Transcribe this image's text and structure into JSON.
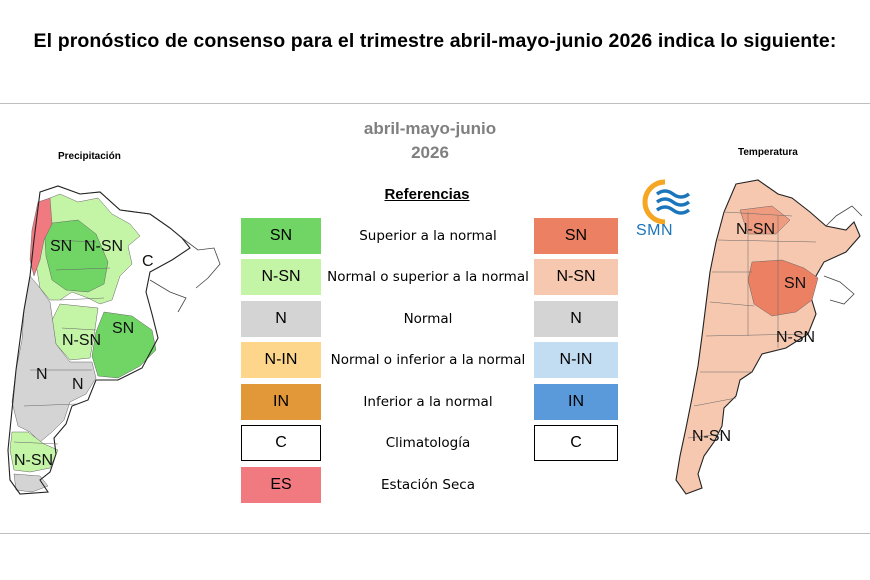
{
  "headline": "El pronóstico de consenso para el trimestre abril-mayo-junio 2026 indica lo siguiente:",
  "period": {
    "line1": "abril-mayo-junio",
    "line2": "2026"
  },
  "maps": {
    "precipitation": {
      "title": "Precipitación",
      "labels": [
        "SN",
        "N-SN",
        "C",
        "N-SN",
        "SN",
        "N",
        "N",
        "N-SN"
      ]
    },
    "temperature": {
      "title": "Temperatura",
      "labels": [
        "N-SN",
        "SN",
        "N-SN",
        "N-SN"
      ]
    }
  },
  "logo": {
    "text": "SMN",
    "icon": "smn-sun-wave-icon"
  },
  "legend": {
    "title": "Referencias",
    "rows": [
      {
        "precip_code": "SN",
        "precip_color": "#70d565",
        "label": "Superior a la normal",
        "temp_code": "SN",
        "temp_color": "#ec8062"
      },
      {
        "precip_code": "N-SN",
        "precip_color": "#c4f5a7",
        "label": "Normal o superior a la normal",
        "temp_code": "N-SN",
        "temp_color": "#f7c8b0"
      },
      {
        "precip_code": "N",
        "precip_color": "#d4d4d4",
        "label": "Normal",
        "temp_code": "N",
        "temp_color": "#d4d4d4"
      },
      {
        "precip_code": "N-IN",
        "precip_color": "#fdd58b",
        "label": "Normal o inferior a la normal",
        "temp_code": "N-IN",
        "temp_color": "#c2dcf1"
      },
      {
        "precip_code": "IN",
        "precip_color": "#e29738",
        "label": "Inferior a la normal",
        "temp_code": "IN",
        "temp_color": "#5b9ada"
      },
      {
        "precip_code": "C",
        "precip_color": "#ffffff",
        "label": "Climatología",
        "temp_code": "C",
        "temp_color": "#ffffff"
      },
      {
        "precip_code": "ES",
        "precip_color": "#f17a80",
        "label": "Estación Seca"
      }
    ]
  }
}
